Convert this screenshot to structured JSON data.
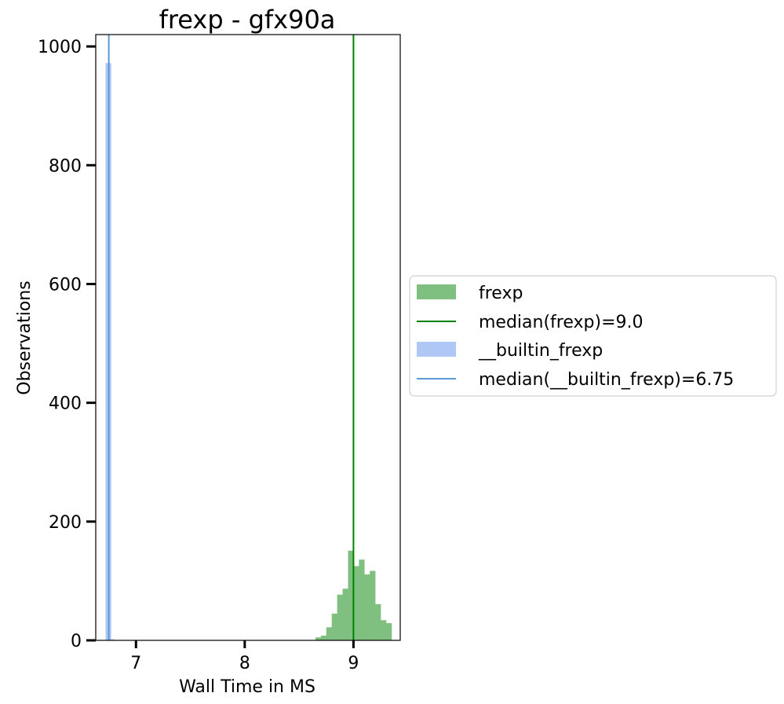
{
  "chart_data": {
    "type": "histogram",
    "title": "frexp - gfx90a",
    "xlabel": "Wall Time in MS",
    "ylabel": "Observations",
    "xlim": [
      6.63,
      9.43
    ],
    "ylim": [
      0,
      1020
    ],
    "x_ticks": [
      7,
      8,
      9
    ],
    "y_ticks": [
      0,
      200,
      400,
      600,
      800,
      1000
    ],
    "grid": false,
    "legend_position": "right-outside",
    "series": [
      {
        "name": "frexp",
        "color": "#7fbf7f",
        "bin_width": 0.05,
        "bins": [
          {
            "x0": 8.65,
            "count": 5
          },
          {
            "x0": 8.7,
            "count": 8
          },
          {
            "x0": 8.75,
            "count": 22
          },
          {
            "x0": 8.8,
            "count": 45
          },
          {
            "x0": 8.85,
            "count": 77
          },
          {
            "x0": 8.9,
            "count": 87
          },
          {
            "x0": 8.95,
            "count": 151
          },
          {
            "x0": 9.0,
            "count": 125
          },
          {
            "x0": 9.05,
            "count": 136
          },
          {
            "x0": 9.1,
            "count": 111
          },
          {
            "x0": 9.15,
            "count": 117
          },
          {
            "x0": 9.2,
            "count": 61
          },
          {
            "x0": 9.25,
            "count": 34
          },
          {
            "x0": 9.3,
            "count": 29
          }
        ]
      },
      {
        "name": "__builtin_frexp",
        "color": "#aec7f5",
        "bin_width": 0.025,
        "bins": [
          {
            "x0": 6.72,
            "count": 972
          },
          {
            "x0": 6.745,
            "count": 972
          },
          {
            "x0": 6.77,
            "count": 2
          }
        ]
      }
    ],
    "medians": [
      {
        "name": "median(frexp)=9.0",
        "value": 9.0,
        "color": "#008000"
      },
      {
        "name": "median(__builtin_frexp)=6.75",
        "value": 6.75,
        "color": "#5b9bd5"
      }
    ],
    "legend": [
      {
        "label": "frexp",
        "kind": "patch",
        "color": "#7fbf7f"
      },
      {
        "label": "median(frexp)=9.0",
        "kind": "line",
        "color": "#008000"
      },
      {
        "label": "__builtin_frexp",
        "kind": "patch",
        "color": "#aec7f5"
      },
      {
        "label": "median(__builtin_frexp)=6.75",
        "kind": "line",
        "color": "#5b9bd5"
      }
    ]
  }
}
